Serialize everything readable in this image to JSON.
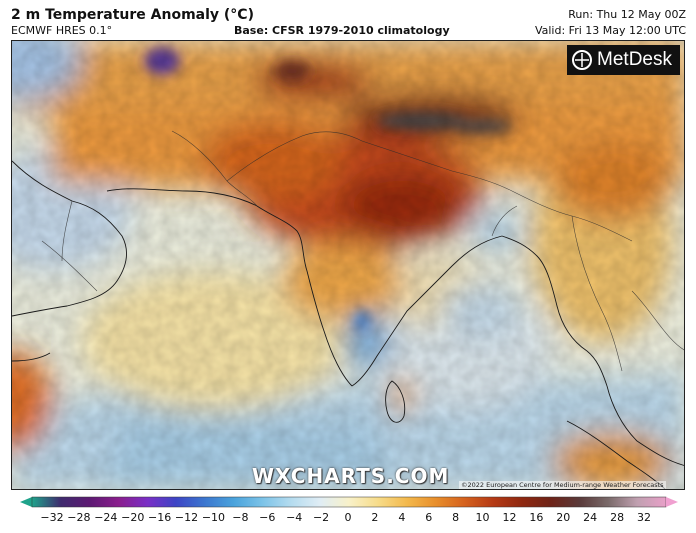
{
  "header": {
    "title": "2 m Temperature Anomaly (°C)",
    "model": "ECMWF HRES 0.1°",
    "base": "Base: CFSR 1979-2010 climatology",
    "run": "Run: Thu 12 May 00Z",
    "valid": "Valid: Fri 13 May 12:00 UTC"
  },
  "watermarks": {
    "brand": "MetDesk",
    "site": "WXCHARTS.COM",
    "copyright": "©2022 European Centre for Medium-range Weather Forecasts"
  },
  "colorbar": {
    "ticks": [
      "−32",
      "−28",
      "−24",
      "−20",
      "−16",
      "−12",
      "−10",
      "−8",
      "−6",
      "−4",
      "−2",
      "0",
      "2",
      "4",
      "6",
      "8",
      "10",
      "12",
      "16",
      "20",
      "24",
      "28",
      "32"
    ],
    "colors": [
      "#1fa38b",
      "#3f2b6e",
      "#5d1a73",
      "#8a1e8d",
      "#7a2fc6",
      "#3d45c5",
      "#3c77cf",
      "#4aa3dc",
      "#7cc3e8",
      "#b5dcef",
      "#e0edf5",
      "#f8f1c9",
      "#f7dc8a",
      "#f3b94d",
      "#e88f2c",
      "#d5621e",
      "#b53a15",
      "#8f2810",
      "#6e2318",
      "#5a3a3a",
      "#7a6a6a",
      "#c0a0b0",
      "#e8a0c8"
    ],
    "high_color": "#f0a0d0",
    "low_color": "#1fa38b"
  }
}
